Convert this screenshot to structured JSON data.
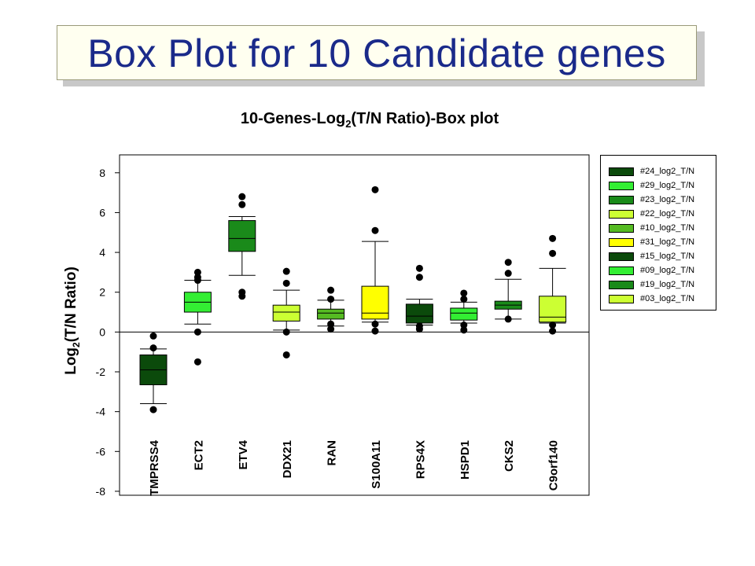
{
  "slide": {
    "title": "Box Plot for 10 Candidate genes"
  },
  "chart_data": {
    "type": "box",
    "title_parts": [
      "10-Genes-Log",
      "2",
      "(T/N Ratio)-Box plot"
    ],
    "ylabel_parts": [
      "Log",
      "2",
      "(T/N Ratio)"
    ],
    "xlabel": "",
    "ylim": [
      -8.2,
      8.9
    ],
    "yticks": [
      8,
      6,
      4,
      2,
      0,
      -2,
      -4,
      -6,
      -8
    ],
    "reference_line": 0,
    "legend_position": "right",
    "boxes": [
      {
        "gene": "TMPRSS4",
        "series": "#24_log2_T/N",
        "color": "#0b4a0b",
        "whisker_low": -3.6,
        "q1": -2.65,
        "median": -1.9,
        "q3": -1.15,
        "whisker_high": -0.85,
        "outliers": [
          -0.2,
          -0.8,
          -3.9
        ]
      },
      {
        "gene": "ECT2",
        "series": "#29_log2_T/N",
        "color": "#33ee33",
        "whisker_low": 0.4,
        "q1": 1.0,
        "median": 1.5,
        "q3": 2.0,
        "whisker_high": 2.6,
        "outliers": [
          3.0,
          2.75,
          2.6,
          0.0,
          -1.5
        ]
      },
      {
        "gene": "ETV4",
        "series": "#23_log2_T/N",
        "color": "#1a8a1a",
        "whisker_low": 2.85,
        "q1": 4.05,
        "median": 4.7,
        "q3": 5.6,
        "whisker_high": 5.8,
        "outliers": [
          6.8,
          6.4,
          2.0,
          1.8
        ]
      },
      {
        "gene": "DDX21",
        "series": "#22_log2_T/N",
        "color": "#ccff33",
        "whisker_low": 0.1,
        "q1": 0.55,
        "median": 1.0,
        "q3": 1.35,
        "whisker_high": 2.1,
        "outliers": [
          3.05,
          2.45,
          0.0,
          -1.15
        ]
      },
      {
        "gene": "RAN",
        "series": "#10_log2_T/N",
        "color": "#55bb22",
        "whisker_low": 0.3,
        "q1": 0.65,
        "median": 0.95,
        "q3": 1.15,
        "whisker_high": 1.6,
        "outliers": [
          2.1,
          1.65,
          0.4,
          0.15
        ]
      },
      {
        "gene": "S100A11",
        "series": "#31_log2_T/N",
        "color": "#ffff00",
        "whisker_low": 0.5,
        "q1": 0.65,
        "median": 0.95,
        "q3": 2.3,
        "whisker_high": 4.55,
        "outliers": [
          7.15,
          5.1,
          0.4,
          0.05
        ]
      },
      {
        "gene": "RPS4X",
        "series": "#15_log2_T/N",
        "color": "#0b4a0b",
        "whisker_low": 0.35,
        "q1": 0.45,
        "median": 0.8,
        "q3": 1.4,
        "whisker_high": 1.65,
        "outliers": [
          3.2,
          2.75,
          0.3,
          0.15
        ]
      },
      {
        "gene": "HSPD1",
        "series": "#09_log2_T/N",
        "color": "#33ee33",
        "whisker_low": 0.45,
        "q1": 0.6,
        "median": 0.95,
        "q3": 1.2,
        "whisker_high": 1.5,
        "outliers": [
          1.95,
          1.65,
          0.35,
          0.1
        ]
      },
      {
        "gene": "CKS2",
        "series": "#19_log2_T/N",
        "color": "#1a8a1a",
        "whisker_low": 0.65,
        "q1": 1.15,
        "median": 1.35,
        "q3": 1.55,
        "whisker_high": 2.65,
        "outliers": [
          3.5,
          2.95,
          0.65
        ]
      },
      {
        "gene": "C9orf140",
        "series": "#03_log2_T/N",
        "color": "#ccff33",
        "whisker_low": 0.45,
        "q1": 0.5,
        "median": 0.75,
        "q3": 1.8,
        "whisker_high": 3.2,
        "outliers": [
          4.7,
          3.95,
          0.35,
          0.05
        ]
      }
    ]
  }
}
